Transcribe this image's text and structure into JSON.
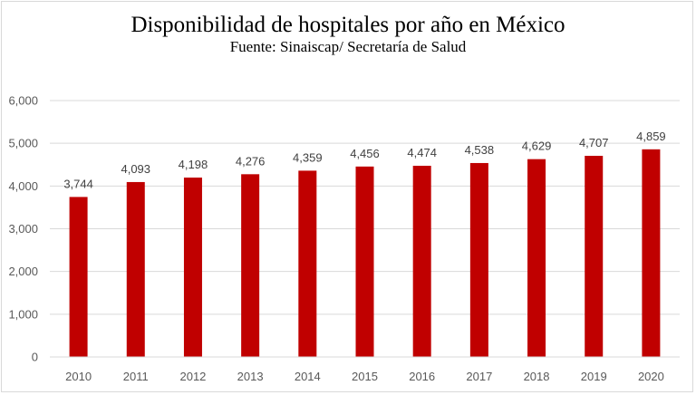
{
  "chart_data": {
    "type": "bar",
    "title": "Disponibilidad de hospitales por año en México",
    "subtitle": "Fuente: Sinaiscap/ Secretaría de Salud",
    "categories": [
      "2010",
      "2011",
      "2012",
      "2013",
      "2014",
      "2015",
      "2016",
      "2017",
      "2018",
      "2019",
      "2020"
    ],
    "values": [
      3744,
      4093,
      4198,
      4276,
      4359,
      4456,
      4474,
      4538,
      4629,
      4707,
      4859
    ],
    "value_labels": [
      "3,744",
      "4,093",
      "4,198",
      "4,276",
      "4,359",
      "4,456",
      "4,474",
      "4,538",
      "4,629",
      "4,707",
      "4,859"
    ],
    "yticks": [
      0,
      1000,
      2000,
      3000,
      4000,
      5000,
      6000
    ],
    "ytick_labels": [
      "0",
      "1,000",
      "2,000",
      "3,000",
      "4,000",
      "5,000",
      "6,000"
    ],
    "ylim": [
      0,
      6000
    ],
    "xlabel": "",
    "ylabel": "",
    "grid": true,
    "legend": "none",
    "bar_color": "#c00000",
    "grid_color": "#d9d9d9"
  }
}
